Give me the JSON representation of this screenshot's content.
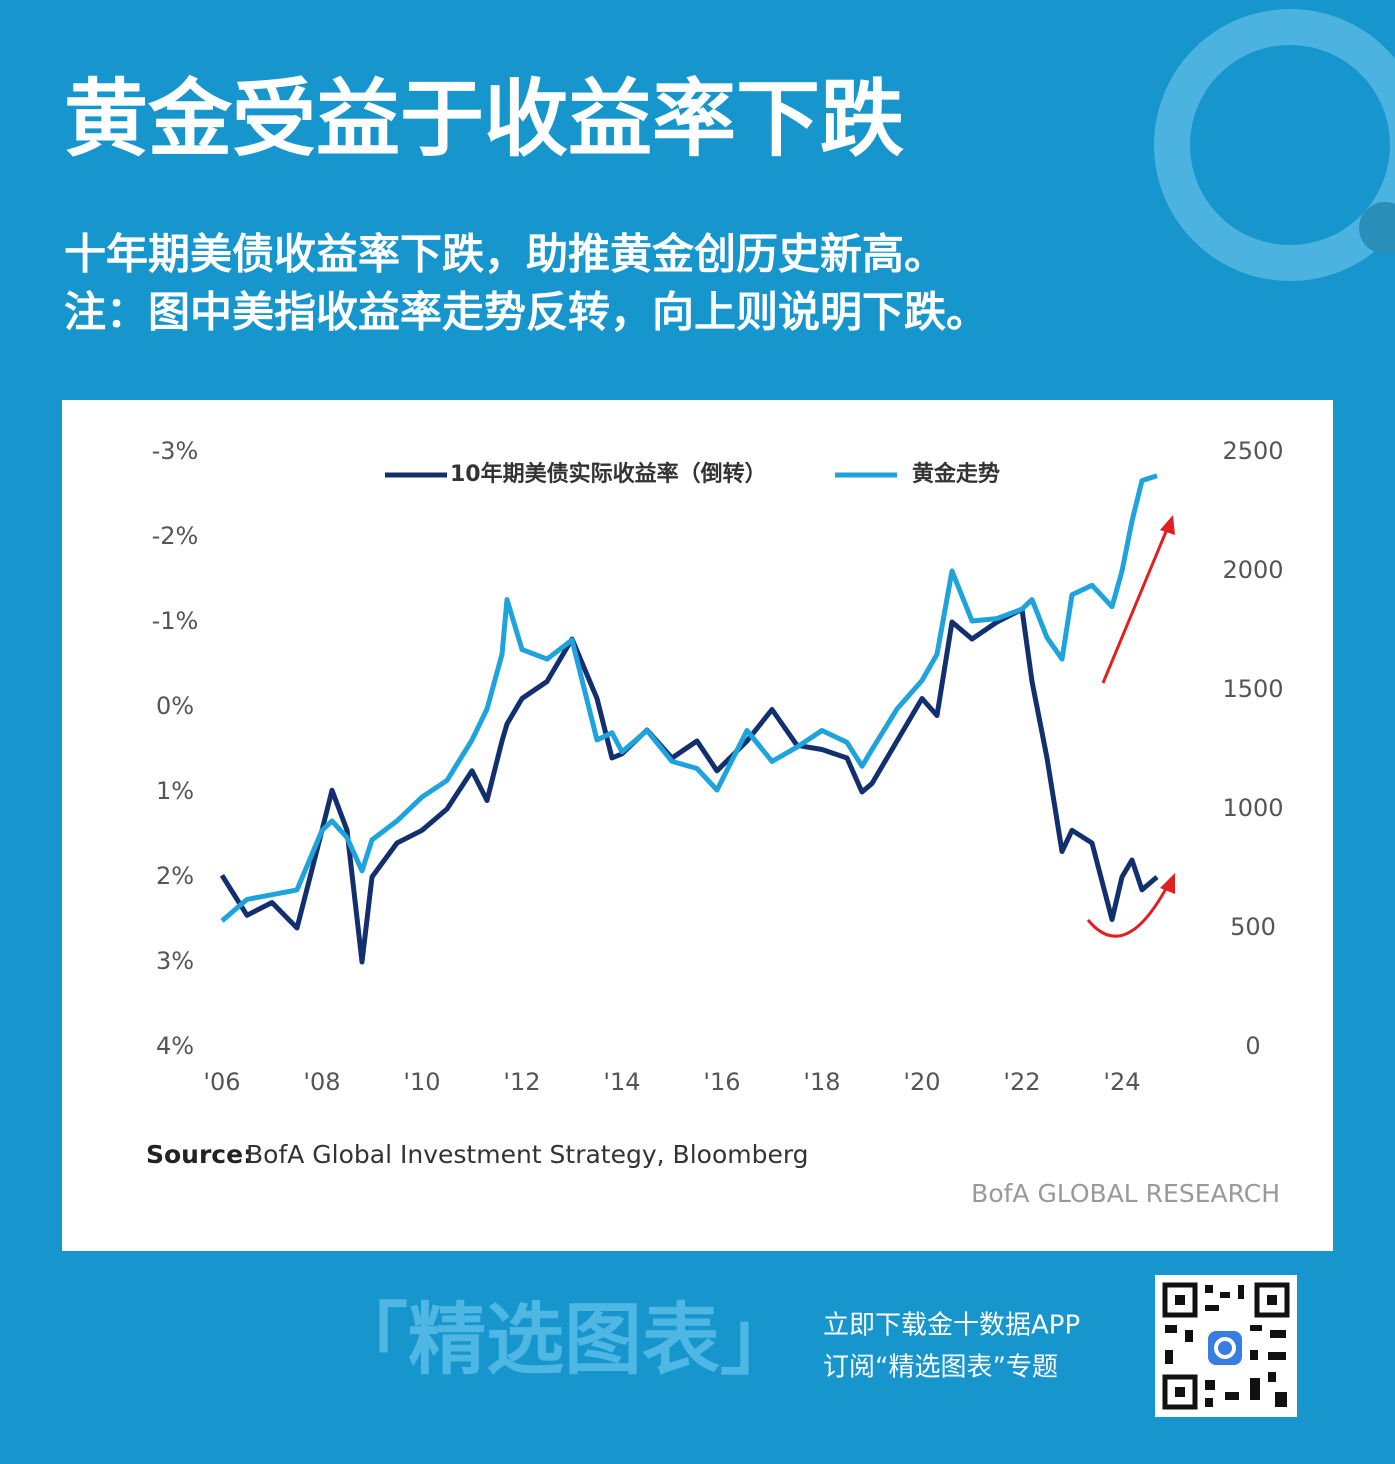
{
  "header": {
    "title": "黄金受益于收益率下跌",
    "subtitle_lines": [
      "十年期美债收益率下跌，助推黄金创历史新高。",
      "注：图中美指收益率走势反转，向上则说明下跌。"
    ]
  },
  "chart_data": {
    "type": "line",
    "x": [
      2006,
      2006.5,
      2007,
      2007.5,
      2008,
      2008.2,
      2008.5,
      2008.8,
      2009,
      2009.5,
      2010,
      2010.5,
      2011,
      2011.3,
      2011.6,
      2011.7,
      2012,
      2012.5,
      2013,
      2013.5,
      2013.8,
      2014,
      2014.5,
      2015,
      2015.5,
      2015.9,
      2016.5,
      2017,
      2017.5,
      2018,
      2018.5,
      2018.8,
      2019,
      2019.5,
      2020,
      2020.3,
      2020.6,
      2021,
      2021.5,
      2022,
      2022.2,
      2022.5,
      2022.8,
      2023,
      2023.4,
      2023.8,
      2024,
      2024.2,
      2024.4,
      2024.7
    ],
    "series": [
      {
        "name": "10年期美债实际收益率（倒转）",
        "color": "#13306e",
        "values": [
          1.98,
          2.45,
          2.3,
          2.6,
          1.45,
          0.98,
          1.45,
          3.0,
          2.0,
          1.6,
          1.45,
          1.2,
          0.75,
          1.1,
          0.4,
          0.2,
          -0.1,
          -0.3,
          -0.8,
          -0.1,
          0.6,
          0.55,
          0.27,
          0.6,
          0.4,
          0.75,
          0.4,
          0.03,
          0.45,
          0.5,
          0.6,
          1.0,
          0.9,
          0.4,
          -0.1,
          0.1,
          -1.0,
          -0.8,
          -1.0,
          -1.15,
          -0.3,
          0.6,
          1.7,
          1.45,
          1.6,
          2.5,
          2.0,
          1.8,
          2.15,
          2.0
        ]
      },
      {
        "name": "黄金走势",
        "color": "#1fa3dc",
        "axis": "y2",
        "values": [
          530,
          620,
          640,
          660,
          910,
          950,
          880,
          740,
          870,
          950,
          1050,
          1120,
          1290,
          1420,
          1650,
          1880,
          1670,
          1630,
          1710,
          1290,
          1320,
          1240,
          1330,
          1200,
          1170,
          1080,
          1330,
          1200,
          1260,
          1330,
          1280,
          1180,
          1250,
          1420,
          1540,
          1650,
          2000,
          1790,
          1800,
          1840,
          1880,
          1720,
          1630,
          1900,
          1940,
          1850,
          2000,
          2210,
          2380,
          2400
        ]
      }
    ],
    "xlim": [
      2006,
      2025
    ],
    "xticks": [
      {
        "value": 2006,
        "label": "'06"
      },
      {
        "value": 2008,
        "label": "'08"
      },
      {
        "value": 2010,
        "label": "'10"
      },
      {
        "value": 2012,
        "label": "'12"
      },
      {
        "value": 2014,
        "label": "'14"
      },
      {
        "value": 2016,
        "label": "'16"
      },
      {
        "value": 2018,
        "label": "'18"
      },
      {
        "value": 2020,
        "label": "'20"
      },
      {
        "value": 2022,
        "label": "'22"
      },
      {
        "value": 2024,
        "label": "'24"
      }
    ],
    "ylim": [
      -3,
      4
    ],
    "y_inverted": true,
    "yticks": [
      {
        "value": -3,
        "label": "-3%"
      },
      {
        "value": -2,
        "label": "-2%"
      },
      {
        "value": -1,
        "label": "-1%"
      },
      {
        "value": 0,
        "label": "0%"
      },
      {
        "value": 1,
        "label": "1%"
      },
      {
        "value": 2,
        "label": "2%"
      },
      {
        "value": 3,
        "label": "3%"
      },
      {
        "value": 4,
        "label": "4%"
      }
    ],
    "y2lim": [
      0,
      2500
    ],
    "y2ticks": [
      0,
      500,
      1000,
      1500,
      2000,
      2500
    ],
    "source_label": "Source:",
    "source": "BofA Global Investment Strategy, Bloomberg",
    "brand": "BofA GLOBAL RESEARCH"
  },
  "footer": {
    "badge": "「精选图表」",
    "lines": [
      "立即下载金十数据APP",
      "订阅“精选图表”专题"
    ]
  }
}
